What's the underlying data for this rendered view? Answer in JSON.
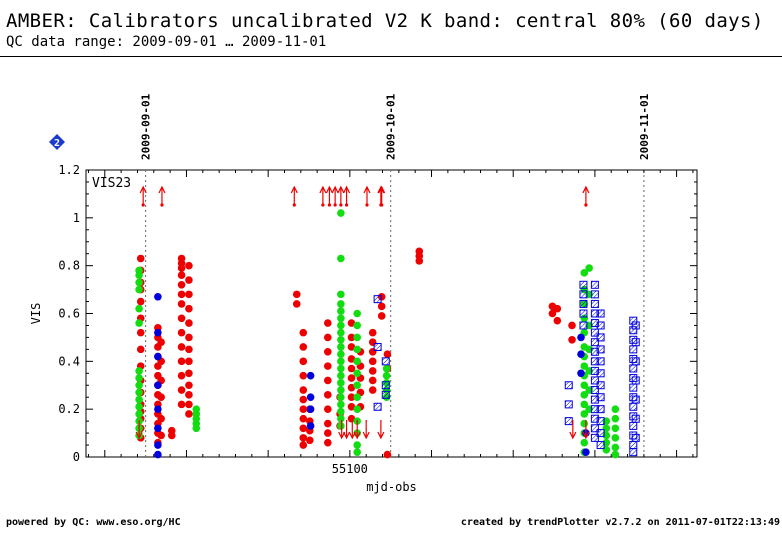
{
  "header": {
    "title": "AMBER: Calibrators uncalibrated V2 K band: central 80% (60 days)",
    "range": "QC data range: 2009-09-01 … 2009-11-01"
  },
  "badge_label": "2",
  "footer": {
    "left": "powered by QC: www.eso.org/HC",
    "right": "created by trendPlotter v2.7.2 on 2011-07-01T22:13:49"
  },
  "colors": {
    "red": "#ee0000",
    "green": "#11dd11",
    "blue": "#0000dd",
    "badge": "#1a3ccc"
  },
  "chart_data": {
    "type": "scatter",
    "title": "",
    "panel_label": "VIS23",
    "xlabel": "mjd-obs",
    "ylabel": "VIS",
    "xlim": [
      55067.7,
      55142.5
    ],
    "ylim": [
      0,
      1.2
    ],
    "yticks": [
      0,
      0.2,
      0.4,
      0.6,
      0.8,
      1,
      1.2
    ],
    "ytick_labels": [
      "0",
      "0.2",
      "0.4",
      "0.6",
      "0.8",
      "1",
      "1.2"
    ],
    "xticks": [
      55100
    ],
    "xtick_labels": [
      "55100"
    ],
    "date_markers": [
      {
        "date": "2009-09-01",
        "mjd": 55075
      },
      {
        "date": "2009-10-01",
        "mjd": 55105
      },
      {
        "date": "2009-11-01",
        "mjd": 55136
      }
    ],
    "grid": false,
    "series": [
      {
        "color": "red",
        "marker": "filled-circle",
        "columns": [
          {
            "x": 55074.4,
            "y": [
              0.83,
              0.78,
              0.73,
              0.7,
              0.65,
              0.58,
              0.52,
              0.45,
              0.38,
              0.32,
              0.27,
              0.22,
              0.19,
              0.16,
              0.12,
              0.08
            ]
          },
          {
            "x": 55076.5,
            "y": [
              0.54,
              0.5,
              0.46,
              0.42,
              0.38,
              0.34,
              0.3,
              0.26,
              0.22,
              0.18,
              0.14,
              0.1,
              0.06
            ]
          },
          {
            "x": 55076.9,
            "y": [
              0.48,
              0.4,
              0.32,
              0.25,
              0.16,
              0.09
            ]
          },
          {
            "x": 55078.2,
            "y": [
              0.11,
              0.09
            ]
          },
          {
            "x": 55079.4,
            "y": [
              0.83,
              0.81,
              0.79,
              0.76,
              0.72,
              0.68,
              0.64,
              0.58,
              0.52,
              0.46,
              0.4,
              0.34,
              0.28,
              0.22
            ]
          },
          {
            "x": 55080.3,
            "y": [
              0.8,
              0.74,
              0.68,
              0.62,
              0.56,
              0.5,
              0.45,
              0.4,
              0.35,
              0.3,
              0.26,
              0.22,
              0.18
            ]
          },
          {
            "x": 55093.5,
            "y": [
              0.68,
              0.64
            ]
          },
          {
            "x": 55094.3,
            "y": [
              0.52,
              0.46,
              0.4,
              0.34,
              0.28,
              0.24,
              0.2,
              0.16,
              0.12,
              0.08,
              0.05
            ]
          },
          {
            "x": 55095.1,
            "y": [
              0.2,
              0.15,
              0.11,
              0.07
            ]
          },
          {
            "x": 55097.3,
            "y": [
              0.56,
              0.5,
              0.44,
              0.38,
              0.32,
              0.26,
              0.2,
              0.14,
              0.1,
              0.06
            ]
          },
          {
            "x": 55098.8,
            "y": [
              0.25,
              0.18,
              0.13
            ]
          },
          {
            "x": 55100.2,
            "y": [
              0.56,
              0.5,
              0.46,
              0.41,
              0.37,
              0.33,
              0.29,
              0.25,
              0.21,
              0.16
            ]
          },
          {
            "x": 55101.3,
            "y": [
              0.44,
              0.38,
              0.33,
              0.27,
              0.21
            ]
          },
          {
            "x": 55102.8,
            "y": [
              0.52,
              0.48,
              0.44,
              0.4,
              0.36,
              0.32,
              0.28
            ]
          },
          {
            "x": 55103.9,
            "y": [
              0.67,
              0.63,
              0.59
            ]
          },
          {
            "x": 55104.6,
            "y": [
              0.43,
              0.37,
              0.01
            ]
          },
          {
            "x": 55108.5,
            "y": [
              0.86,
              0.84,
              0.82
            ]
          },
          {
            "x": 55124.8,
            "y": [
              0.63,
              0.6
            ]
          },
          {
            "x": 55125.4,
            "y": [
              0.62,
              0.57
            ]
          },
          {
            "x": 55127.2,
            "y": [
              0.55,
              0.49
            ]
          }
        ]
      },
      {
        "color": "green",
        "marker": "filled-circle",
        "columns": [
          {
            "x": 55074.2,
            "y": [
              0.78,
              0.76,
              0.73,
              0.7,
              0.62,
              0.56,
              0.36,
              0.33,
              0.3,
              0.27,
              0.24,
              0.21,
              0.18,
              0.15,
              0.12,
              0.09
            ]
          },
          {
            "x": 55081.2,
            "y": [
              0.2,
              0.18,
              0.16,
              0.14,
              0.12
            ]
          },
          {
            "x": 55098.9,
            "y": [
              1.02,
              0.83,
              0.68,
              0.64,
              0.61,
              0.58,
              0.55,
              0.52,
              0.49,
              0.46,
              0.43,
              0.4,
              0.37,
              0.34,
              0.31,
              0.28,
              0.25,
              0.22,
              0.19,
              0.16,
              0.13
            ]
          },
          {
            "x": 55100.9,
            "y": [
              0.6,
              0.55,
              0.5,
              0.45,
              0.4,
              0.35,
              0.3,
              0.25,
              0.2,
              0.15,
              0.1,
              0.05,
              0.02
            ]
          },
          {
            "x": 55104.5,
            "y": [
              0.37,
              0.34,
              0.31,
              0.28,
              0.25
            ]
          },
          {
            "x": 55128.7,
            "y": [
              0.77,
              0.7,
              0.64,
              0.58,
              0.52,
              0.46,
              0.42,
              0.38,
              0.34,
              0.3,
              0.26,
              0.22,
              0.18,
              0.14,
              0.1,
              0.06,
              0.02
            ]
          },
          {
            "x": 55129.3,
            "y": [
              0.79,
              0.68,
              0.55,
              0.45,
              0.36,
              0.28,
              0.2
            ]
          },
          {
            "x": 55131.4,
            "y": [
              0.15,
              0.12,
              0.09,
              0.06,
              0.03
            ]
          },
          {
            "x": 55132.5,
            "y": [
              0.2,
              0.16,
              0.12,
              0.08,
              0.04,
              0.01
            ]
          }
        ]
      },
      {
        "color": "blue",
        "marker": "filled-circle",
        "columns": [
          {
            "x": 55076.5,
            "y": [
              0.67,
              0.52,
              0.42,
              0.3,
              0.2,
              0.12,
              0.05,
              0.01
            ]
          },
          {
            "x": 55095.2,
            "y": [
              0.34,
              0.25,
              0.2,
              0.13
            ]
          },
          {
            "x": 55128.3,
            "y": [
              0.5,
              0.43,
              0.35
            ]
          },
          {
            "x": 55128.9,
            "y": [
              0.1,
              0.02
            ]
          }
        ]
      },
      {
        "color": "blue",
        "marker": "hatched-square",
        "columns": [
          {
            "x": 55103.4,
            "y": [
              0.66,
              0.46,
              0.21
            ]
          },
          {
            "x": 55104.4,
            "y": [
              0.4,
              0.3,
              0.26
            ]
          },
          {
            "x": 55126.8,
            "y": [
              0.3,
              0.22,
              0.15
            ]
          },
          {
            "x": 55128.6,
            "y": [
              0.72,
              0.68,
              0.64,
              0.6,
              0.55
            ]
          },
          {
            "x": 55130.0,
            "y": [
              0.72,
              0.68,
              0.64,
              0.6,
              0.56,
              0.52,
              0.48,
              0.44,
              0.4,
              0.36,
              0.32,
              0.28,
              0.24,
              0.2,
              0.16,
              0.12,
              0.08
            ]
          },
          {
            "x": 55130.7,
            "y": [
              0.6,
              0.55,
              0.5,
              0.45,
              0.4,
              0.35,
              0.3,
              0.25,
              0.2,
              0.15,
              0.1,
              0.05
            ]
          },
          {
            "x": 55134.7,
            "y": [
              0.57,
              0.53,
              0.49,
              0.45,
              0.41,
              0.37,
              0.33,
              0.29,
              0.25,
              0.21,
              0.17,
              0.13,
              0.09,
              0.05,
              0.02
            ]
          },
          {
            "x": 55135.0,
            "y": [
              0.55,
              0.48,
              0.4,
              0.32,
              0.24,
              0.16,
              0.08
            ]
          }
        ]
      }
    ],
    "arrows": [
      {
        "x": 55074.7,
        "dir": "up"
      },
      {
        "x": 55077.0,
        "dir": "up"
      },
      {
        "x": 55093.2,
        "dir": "up"
      },
      {
        "x": 55096.7,
        "dir": "up"
      },
      {
        "x": 55097.5,
        "dir": "up"
      },
      {
        "x": 55098.2,
        "dir": "up"
      },
      {
        "x": 55098.9,
        "dir": "up"
      },
      {
        "x": 55099.6,
        "dir": "up"
      },
      {
        "x": 55102.1,
        "dir": "up"
      },
      {
        "x": 55103.8,
        "dir": "up"
      },
      {
        "x": 55103.9,
        "dir": "up"
      },
      {
        "x": 55128.9,
        "dir": "up"
      },
      {
        "x": 55074.2,
        "dir": "down"
      },
      {
        "x": 55099.0,
        "dir": "down"
      },
      {
        "x": 55099.6,
        "dir": "down"
      },
      {
        "x": 55100.3,
        "dir": "down"
      },
      {
        "x": 55100.9,
        "dir": "down"
      },
      {
        "x": 55102.0,
        "dir": "down"
      },
      {
        "x": 55103.8,
        "dir": "down"
      },
      {
        "x": 55127.3,
        "dir": "down"
      },
      {
        "x": 55128.9,
        "dir": "down"
      }
    ]
  }
}
